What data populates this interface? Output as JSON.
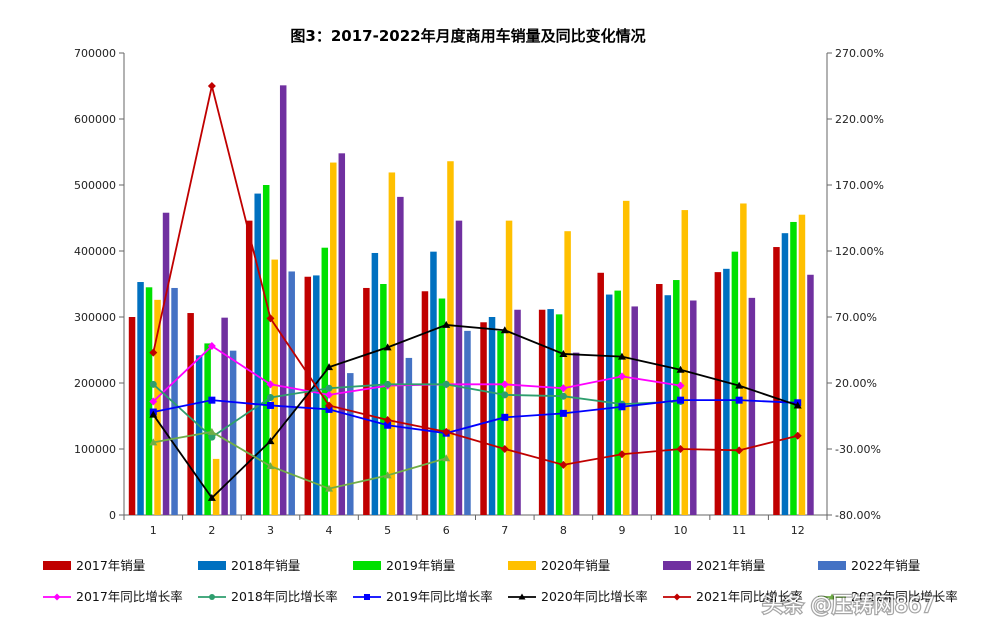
{
  "watermark": "头条 @压铸网867",
  "chart_data": {
    "type": "bar+line",
    "title": "图3：2017-2022年月度商用车销量及同比变化情况",
    "categories": [
      "1",
      "2",
      "3",
      "4",
      "5",
      "6",
      "7",
      "8",
      "9",
      "10",
      "11",
      "12"
    ],
    "left_axis": {
      "min": 0,
      "max": 700000,
      "step": 100000,
      "ticks": [
        "0",
        "100000",
        "200000",
        "300000",
        "400000",
        "500000",
        "600000",
        "700000"
      ]
    },
    "right_axis": {
      "min": -80,
      "max": 270,
      "step": 50,
      "ticks": [
        "-80.00%",
        "-30.00%",
        "20.00%",
        "70.00%",
        "120.00%",
        "170.00%",
        "220.00%",
        "270.00%"
      ]
    },
    "bar_series": [
      {
        "name": "2017年销量",
        "color": "#c00000",
        "values": [
          300000,
          306000,
          446000,
          361000,
          344000,
          339000,
          292000,
          311000,
          367000,
          350000,
          368000,
          406000
        ]
      },
      {
        "name": "2018年销量",
        "color": "#0070c0",
        "values": [
          353000,
          242000,
          487000,
          363000,
          397000,
          399000,
          300000,
          312000,
          334000,
          333000,
          373000,
          427000
        ]
      },
      {
        "name": "2019年销量",
        "color": "#00e000",
        "values": [
          345000,
          260000,
          500000,
          405000,
          350000,
          328000,
          279000,
          304000,
          340000,
          356000,
          399000,
          444000
        ]
      },
      {
        "name": "2020年销量",
        "color": "#ffc000",
        "values": [
          326000,
          85000,
          387000,
          534000,
          519000,
          536000,
          446000,
          430000,
          476000,
          462000,
          472000,
          455000
        ]
      },
      {
        "name": "2021年销量",
        "color": "#7030a0",
        "values": [
          458000,
          299000,
          651000,
          548000,
          482000,
          446000,
          311000,
          246000,
          316000,
          325000,
          329000,
          364000
        ]
      },
      {
        "name": "2022年销量",
        "color": "#4472c4",
        "values": [
          344000,
          249000,
          369000,
          215000,
          238000,
          279000,
          null,
          null,
          null,
          null,
          null,
          null
        ]
      }
    ],
    "line_series": [
      {
        "name": "2017年同比增长率",
        "color": "#ff00ff",
        "marker": "diamond",
        "values": [
          6,
          48,
          19,
          11,
          18,
          19,
          19,
          16,
          25,
          18,
          null,
          null
        ]
      },
      {
        "name": "2018年同比增长率",
        "color": "#2e9e6e",
        "marker": "circle",
        "values": [
          19,
          -21,
          9,
          16,
          19,
          19,
          11,
          10,
          4,
          6,
          null,
          null
        ]
      },
      {
        "name": "2019年同比增长率",
        "color": "#0000ff",
        "marker": "square",
        "values": [
          -2,
          7,
          3,
          0,
          -12,
          -18,
          -6,
          -3,
          2,
          7,
          7,
          5
        ]
      },
      {
        "name": "2020年同比增长率",
        "color": "#000000",
        "marker": "triangle",
        "values": [
          -4,
          -67,
          -24,
          32,
          47,
          64,
          60,
          42,
          40,
          30,
          18,
          3
        ]
      },
      {
        "name": "2021年同比增长率",
        "color": "#c00000",
        "marker": "diamond",
        "values": [
          43,
          245,
          69,
          3,
          -8,
          -17,
          -30,
          -42,
          -34,
          -30,
          -31,
          -20
        ]
      },
      {
        "name": "2022年同比增长率",
        "color": "#70ad47",
        "marker": "triangle",
        "values": [
          -25,
          -17,
          -43,
          -60,
          -50,
          -37,
          null,
          null,
          null,
          null,
          null,
          null
        ]
      }
    ],
    "legend_position": "bottom",
    "grid": false
  }
}
